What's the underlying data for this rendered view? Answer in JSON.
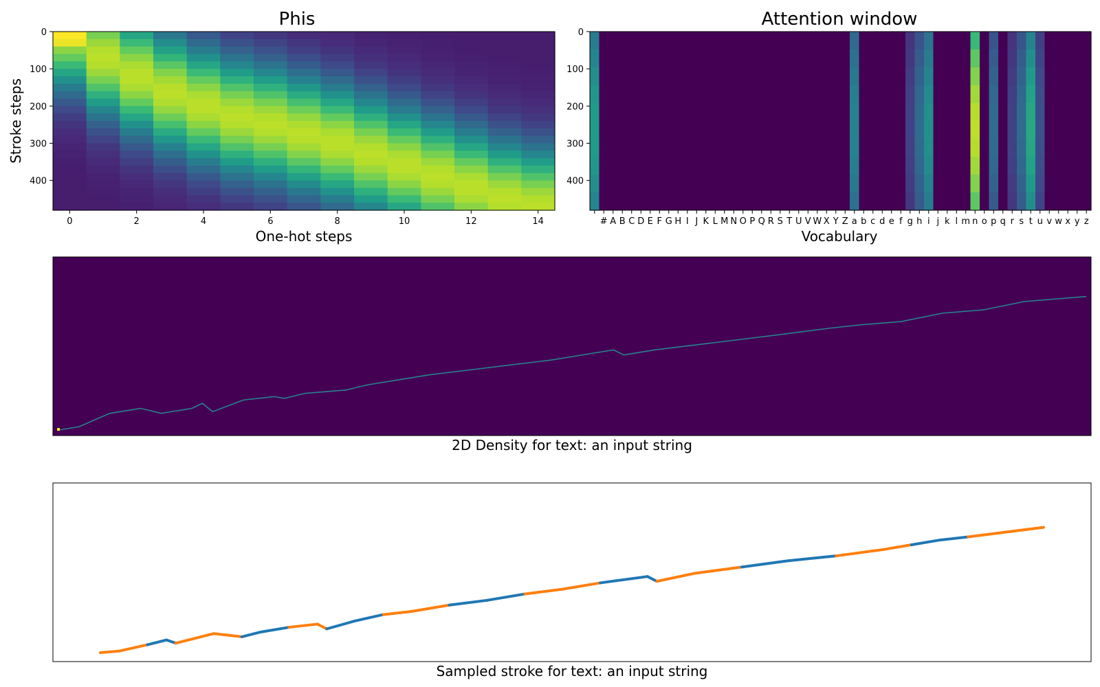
{
  "colors": {
    "viridis": [
      "#440154",
      "#482878",
      "#3e4989",
      "#31688e",
      "#26828e",
      "#1f9e89",
      "#35b779",
      "#6ece58",
      "#b5de2b",
      "#fde725"
    ],
    "stroke_blue": "#1f77b4",
    "stroke_orange": "#ff7f0e"
  },
  "charts": {
    "phis": {
      "title": "Phis",
      "xlabel": "One-hot steps",
      "ylabel": "Stroke steps",
      "xticks": [
        "0",
        "2",
        "4",
        "6",
        "8",
        "10",
        "12",
        "14"
      ],
      "yticks": [
        "0",
        "100",
        "200",
        "300",
        "400"
      ]
    },
    "attention": {
      "title": "Attention window",
      "xlabel": "Vocabulary",
      "yticks": [
        "0",
        "100",
        "200",
        "300",
        "400"
      ]
    },
    "density": {
      "caption": "2D Density for text: an input string"
    },
    "stroke": {
      "caption": "Sampled stroke for text: an input string"
    }
  },
  "chart_data": [
    {
      "type": "heatmap",
      "title": "Phis",
      "xlabel": "One-hot steps",
      "ylabel": "Stroke steps",
      "x": [
        0,
        1,
        2,
        3,
        4,
        5,
        6,
        7,
        8,
        9,
        10,
        11,
        12,
        13,
        14
      ],
      "xlim": [
        -0.5,
        14.5
      ],
      "ylim": [
        480,
        0
      ],
      "colormap": "viridis",
      "peak_step_per_column": [
        0,
        70,
        120,
        165,
        200,
        230,
        250,
        275,
        300,
        330,
        360,
        390,
        420,
        450,
        470
      ],
      "note_values": "each column is a bump over stroke steps peaking near the listed step"
    },
    {
      "type": "heatmap",
      "title": "Attention window",
      "xlabel": "Vocabulary",
      "vocabulary": [
        " ",
        "#",
        "A",
        "B",
        "C",
        "D",
        "E",
        "F",
        "G",
        "H",
        "I",
        "J",
        "K",
        "L",
        "M",
        "N",
        "O",
        "P",
        "Q",
        "R",
        "S",
        "T",
        "U",
        "V",
        "W",
        "X",
        "Y",
        "Z",
        "a",
        "b",
        "c",
        "d",
        "e",
        "f",
        "g",
        "h",
        "i",
        "j",
        "k",
        "l",
        "m",
        "n",
        "o",
        "p",
        "q",
        "r",
        "s",
        "t",
        "u",
        "v",
        "w",
        "x",
        "y",
        "z"
      ],
      "ylim": [
        480,
        0
      ],
      "colormap": "viridis",
      "active_columns": [
        {
          "char": " ",
          "level": 0.55
        },
        {
          "char": "a",
          "level": 0.45
        },
        {
          "char": "g",
          "level": 0.2
        },
        {
          "char": "h",
          "level": 0.35
        },
        {
          "char": "i",
          "level": 0.5
        },
        {
          "char": "n",
          "level": 0.9
        },
        {
          "char": "p",
          "level": 0.35
        },
        {
          "char": "r",
          "level": 0.2
        },
        {
          "char": "s",
          "level": 0.35
        },
        {
          "char": "t",
          "level": 0.6
        },
        {
          "char": "u",
          "level": 0.25
        }
      ]
    },
    {
      "type": "heatmap",
      "caption": "2D Density for text: an input string",
      "colormap": "viridis",
      "trace": [
        [
          0,
          0
        ],
        [
          0.02,
          0.02
        ],
        [
          0.05,
          0.1
        ],
        [
          0.08,
          0.13
        ],
        [
          0.1,
          0.1
        ],
        [
          0.13,
          0.13
        ],
        [
          0.14,
          0.16
        ],
        [
          0.15,
          0.11
        ],
        [
          0.18,
          0.18
        ],
        [
          0.21,
          0.2
        ],
        [
          0.22,
          0.19
        ],
        [
          0.24,
          0.22
        ],
        [
          0.28,
          0.24
        ],
        [
          0.3,
          0.27
        ],
        [
          0.33,
          0.3
        ],
        [
          0.36,
          0.33
        ],
        [
          0.4,
          0.36
        ],
        [
          0.44,
          0.39
        ],
        [
          0.48,
          0.42
        ],
        [
          0.51,
          0.45
        ],
        [
          0.54,
          0.48
        ],
        [
          0.55,
          0.45
        ],
        [
          0.58,
          0.48
        ],
        [
          0.62,
          0.51
        ],
        [
          0.66,
          0.54
        ],
        [
          0.7,
          0.57
        ],
        [
          0.75,
          0.61
        ],
        [
          0.78,
          0.63
        ],
        [
          0.82,
          0.65
        ],
        [
          0.86,
          0.7
        ],
        [
          0.9,
          0.72
        ],
        [
          0.94,
          0.77
        ],
        [
          1.0,
          0.8
        ]
      ]
    },
    {
      "type": "line",
      "caption": "Sampled stroke for text: an input string",
      "series": [
        {
          "color": "blue",
          "segments": 9
        },
        {
          "color": "orange",
          "segments": 10
        }
      ],
      "path": [
        [
          0,
          0
        ],
        [
          0.02,
          0.01
        ],
        [
          0.05,
          0.05
        ],
        [
          0.07,
          0.08
        ],
        [
          0.08,
          0.06
        ],
        [
          0.12,
          0.12
        ],
        [
          0.15,
          0.1
        ],
        [
          0.17,
          0.13
        ],
        [
          0.2,
          0.16
        ],
        [
          0.23,
          0.18
        ],
        [
          0.24,
          0.15
        ],
        [
          0.27,
          0.2
        ],
        [
          0.3,
          0.24
        ],
        [
          0.33,
          0.26
        ],
        [
          0.37,
          0.3
        ],
        [
          0.41,
          0.33
        ],
        [
          0.45,
          0.37
        ],
        [
          0.49,
          0.4
        ],
        [
          0.53,
          0.44
        ],
        [
          0.58,
          0.48
        ],
        [
          0.59,
          0.45
        ],
        [
          0.63,
          0.5
        ],
        [
          0.68,
          0.54
        ],
        [
          0.73,
          0.58
        ],
        [
          0.78,
          0.61
        ],
        [
          0.83,
          0.65
        ],
        [
          0.86,
          0.68
        ],
        [
          0.89,
          0.71
        ],
        [
          0.92,
          0.73
        ],
        [
          0.96,
          0.76
        ],
        [
          1.0,
          0.79
        ]
      ]
    }
  ]
}
